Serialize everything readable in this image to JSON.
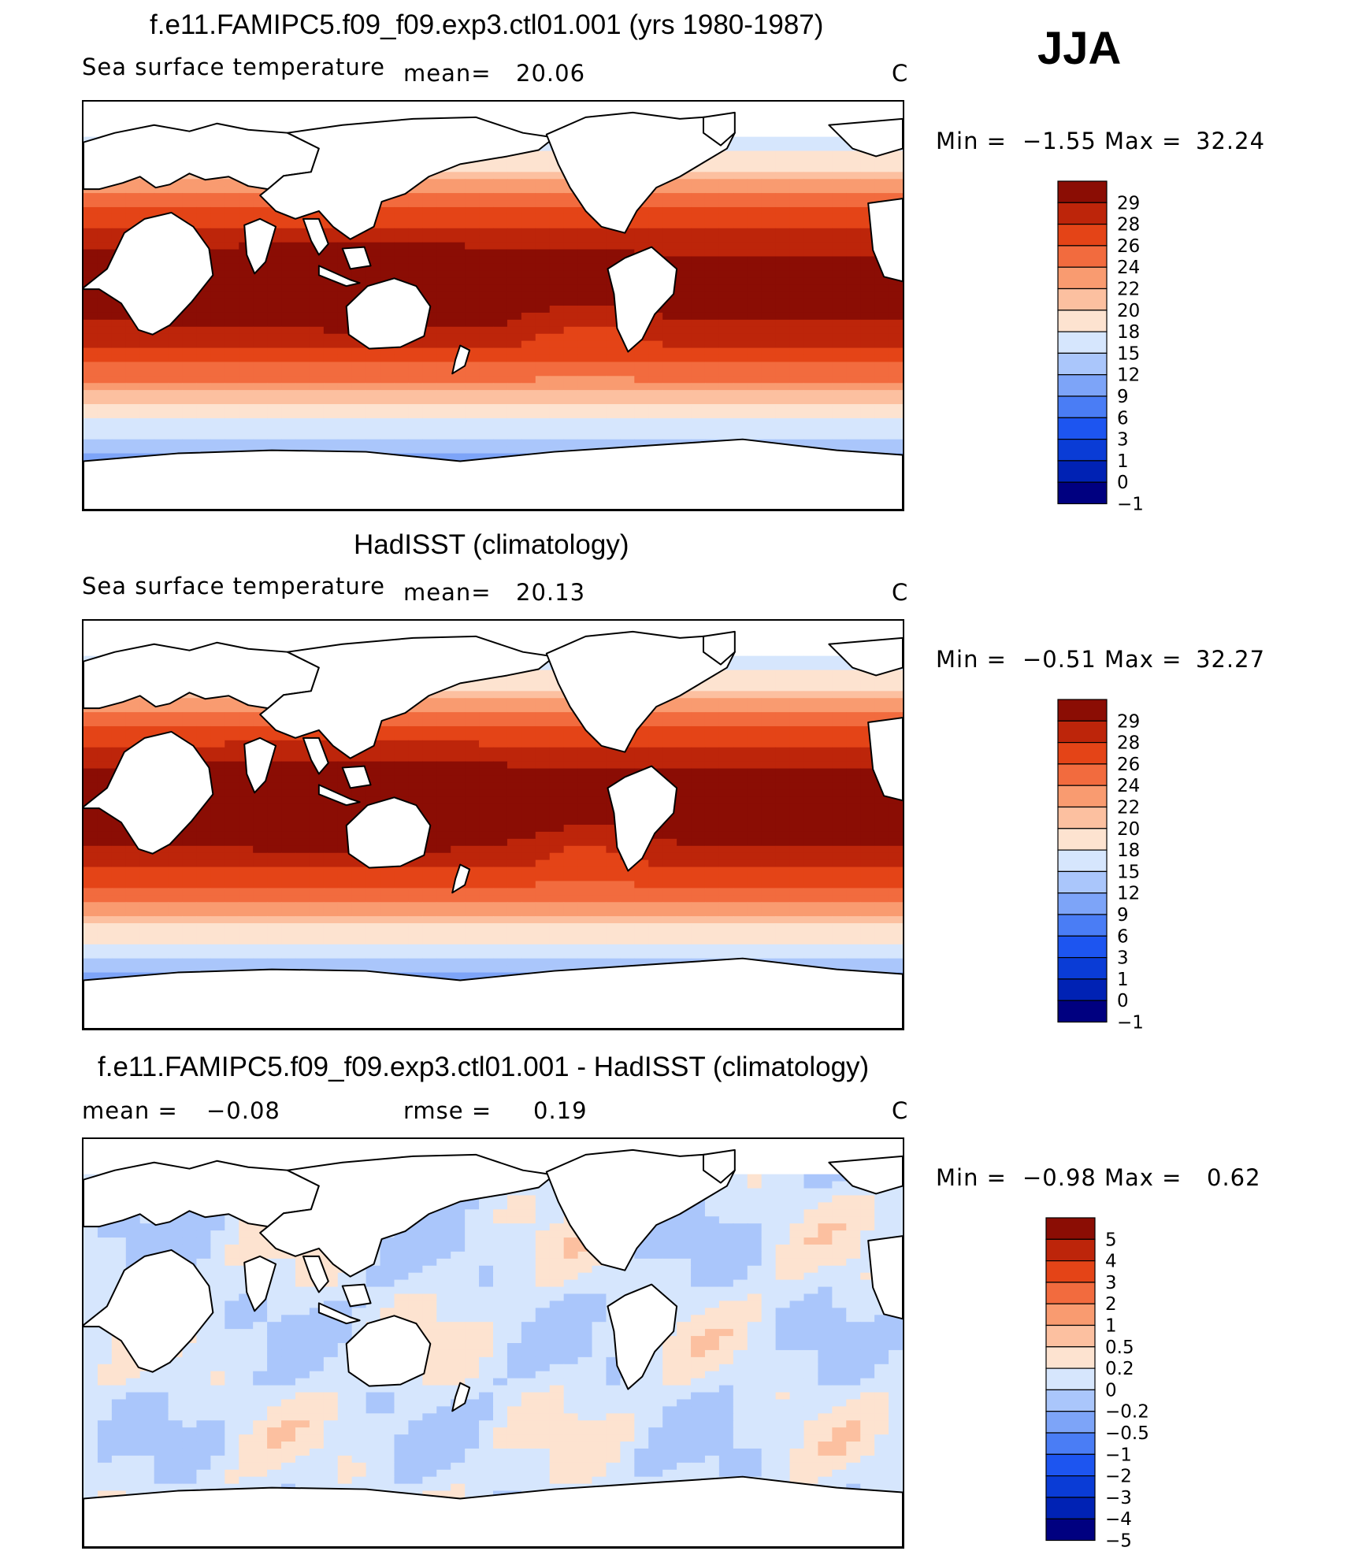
{
  "season": "JJA",
  "colors": {
    "sst_scale": [
      "#000080",
      "#0022b4",
      "#0a3cd6",
      "#1d55f0",
      "#4a7df5",
      "#7da4f8",
      "#aac6fb",
      "#d6e6fd",
      "#fde3d0",
      "#fcc0a0",
      "#f99b70",
      "#f26b3e",
      "#e44417",
      "#bd250a",
      "#8b0d04"
    ],
    "diff_scale": [
      "#000080",
      "#0022b4",
      "#0a3cd6",
      "#1d55f0",
      "#4a7df5",
      "#7da4f8",
      "#aac6fb",
      "#d6e6fd",
      "#fde3d0",
      "#fcc0a0",
      "#f99b70",
      "#f26b3e",
      "#e44417",
      "#bd250a",
      "#8b0d04"
    ],
    "land": "#ffffff",
    "coast": "#000000"
  },
  "panels": [
    {
      "title": "f.e11.FAMIPC5.f09_f09.exp3.ctl01.001 (yrs 1980-1987)",
      "variable": "Sea surface temperature",
      "stat1_label": "mean=",
      "stat1_value": "20.06",
      "units": "C",
      "min_label": "Min =",
      "min_value": "−1.55",
      "max_label": "Max =",
      "max_value": "32.24",
      "levels": [
        "29",
        "28",
        "26",
        "24",
        "22",
        "20",
        "18",
        "15",
        "12",
        "9",
        "6",
        "3",
        "1",
        "0",
        "−1"
      ]
    },
    {
      "title": "HadISST (climatology)",
      "variable": "Sea surface temperature",
      "stat1_label": "mean=",
      "stat1_value": "20.13",
      "units": "C",
      "min_label": "Min =",
      "min_value": "−0.51",
      "max_label": "Max =",
      "max_value": "32.27",
      "levels": [
        "29",
        "28",
        "26",
        "24",
        "22",
        "20",
        "18",
        "15",
        "12",
        "9",
        "6",
        "3",
        "1",
        "0",
        "−1"
      ]
    },
    {
      "title": "f.e11.FAMIPC5.f09_f09.exp3.ctl01.001 - HadISST (climatology)",
      "stat1_label": "mean =",
      "stat1_value": "−0.08",
      "stat2_label": "rmse =",
      "stat2_value": "0.19",
      "units": "C",
      "min_label": "Min =",
      "min_value": "−0.98",
      "max_label": "Max =",
      "max_value": "0.62",
      "levels": [
        "5",
        "4",
        "3",
        "2",
        "1",
        "0.5",
        "0.2",
        "0",
        "−0.2",
        "−0.5",
        "−1",
        "−2",
        "−3",
        "−4",
        "−5"
      ]
    }
  ]
}
